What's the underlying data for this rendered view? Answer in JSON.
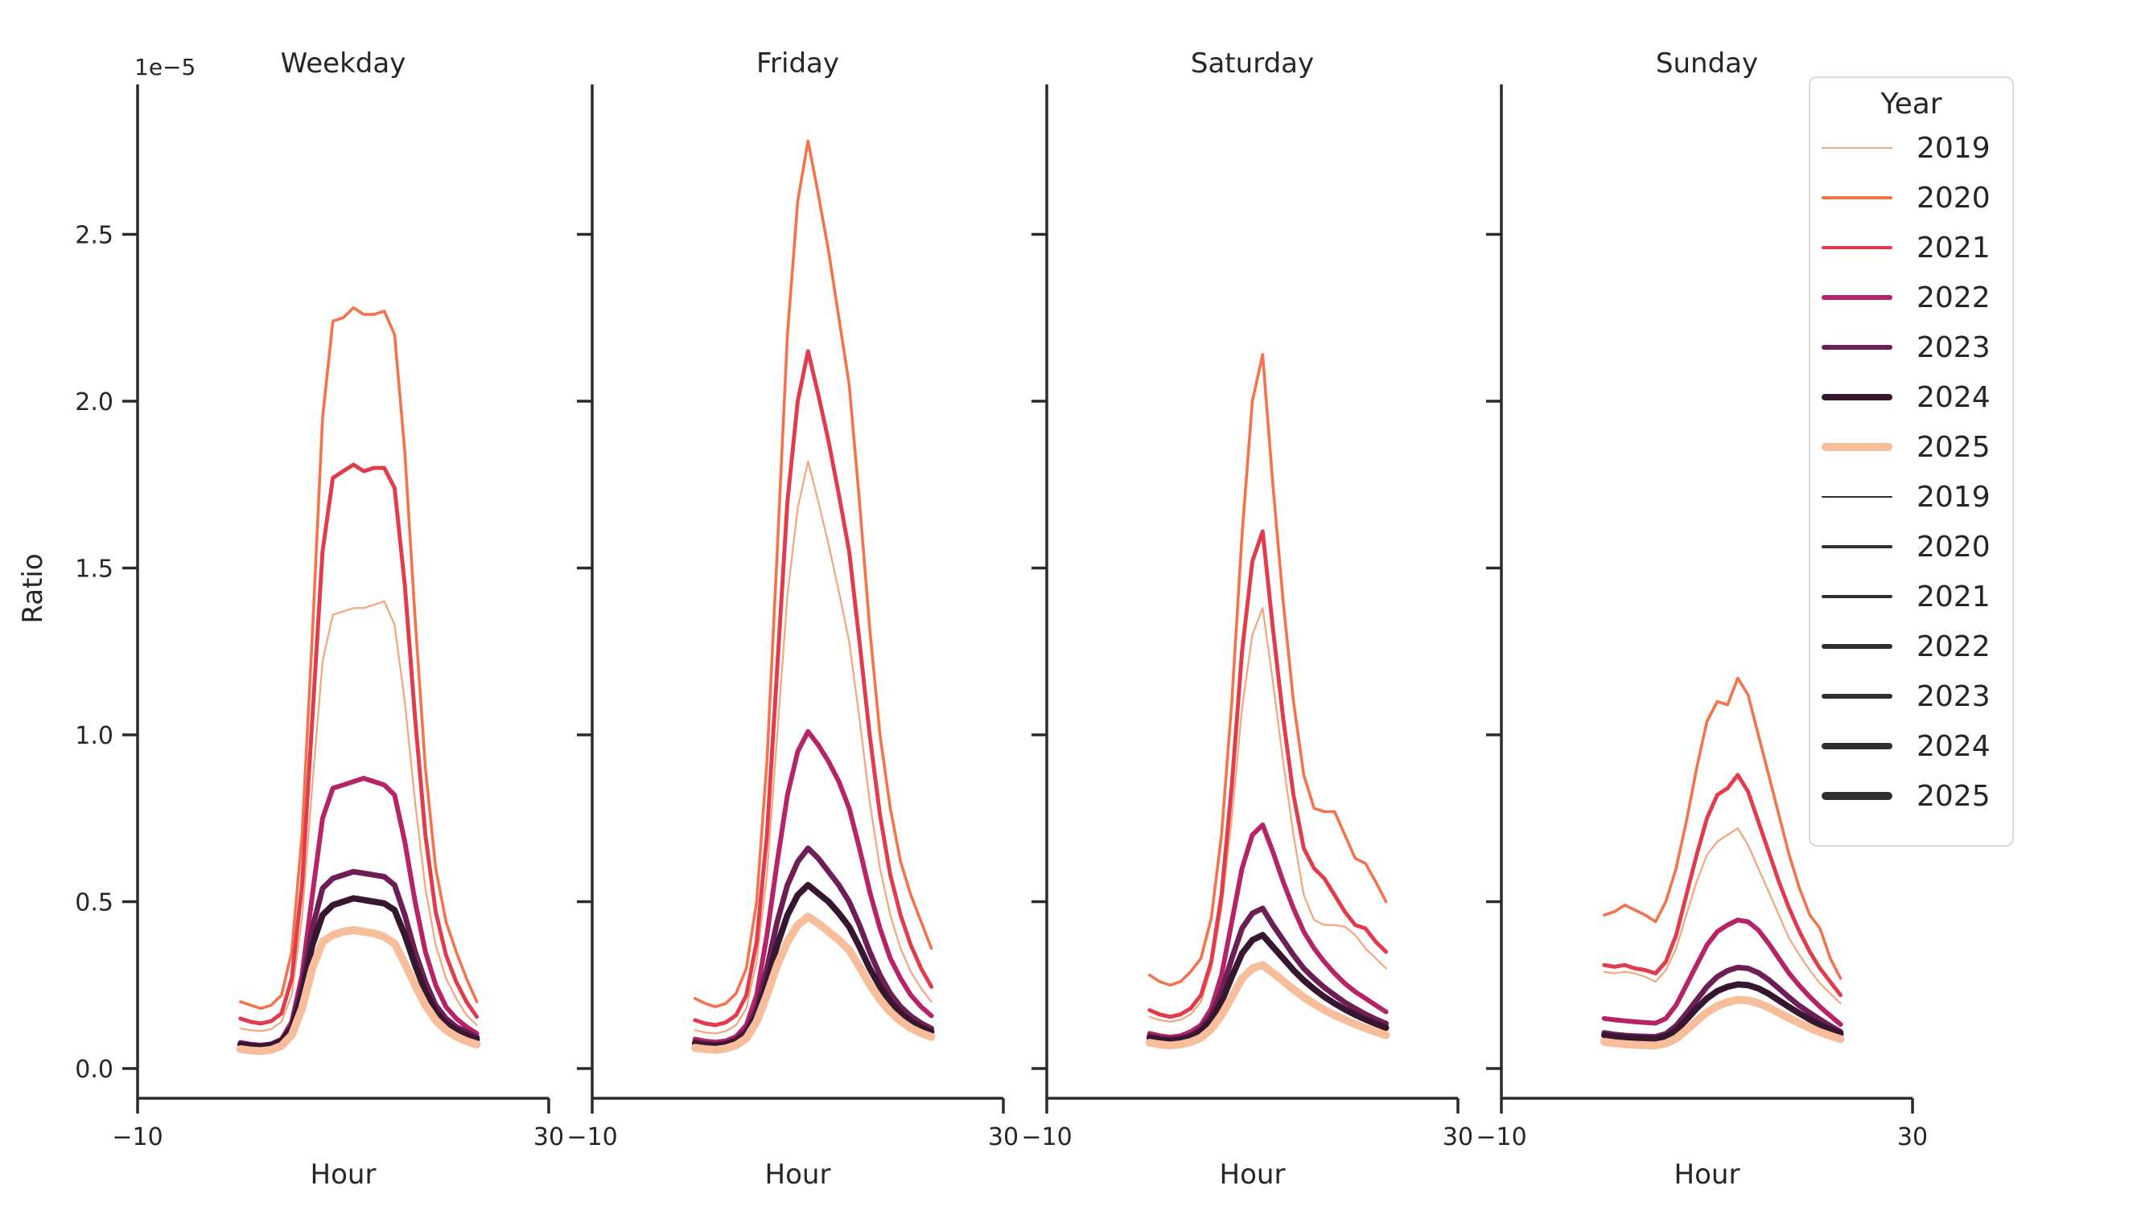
{
  "legend": {
    "title": "Year",
    "entries": [
      {
        "label": "2019",
        "color": "#F4A77E",
        "width": 1.5
      },
      {
        "label": "2020",
        "color": "#F3744C",
        "width": 2.4
      },
      {
        "label": "2021",
        "color": "#E13C4C",
        "width": 3.3
      },
      {
        "label": "2022",
        "color": "#B62367",
        "width": 4.0
      },
      {
        "label": "2023",
        "color": "#6E1E57",
        "width": 4.6
      },
      {
        "label": "2024",
        "color": "#371630",
        "width": 5.2
      },
      {
        "label": "2025",
        "color": "#F8BE9C",
        "width": 6.6
      },
      {
        "label": "2019",
        "color": "#2F2F2F",
        "width": 1.5
      },
      {
        "label": "2020",
        "color": "#2F2F2F",
        "width": 2.4
      },
      {
        "label": "2021",
        "color": "#2F2F2F",
        "width": 3.3
      },
      {
        "label": "2022",
        "color": "#2F2F2F",
        "width": 4.0
      },
      {
        "label": "2023",
        "color": "#2F2F2F",
        "width": 4.6
      },
      {
        "label": "2024",
        "color": "#2F2F2F",
        "width": 5.2
      },
      {
        "label": "2025",
        "color": "#2F2F2F",
        "width": 6.6
      }
    ]
  },
  "chart_data": {
    "type": "line",
    "xlabel": "Hour",
    "ylabel": "Ratio",
    "offset_text": "1e−5",
    "xlim": [
      -10,
      30
    ],
    "x_tick_values": [
      -10,
      30
    ],
    "x_tick_labels": [
      "−10",
      "30"
    ],
    "ylim": [
      -0.09,
      2.95
    ],
    "y_unit": "1e-5",
    "y_tick_values": [
      0.0,
      0.5,
      1.0,
      1.5,
      2.0,
      2.5
    ],
    "y_tick_labels": [
      "0.0",
      "0.5",
      "1.0",
      "1.5",
      "2.0",
      "2.5"
    ],
    "grid": false,
    "legend_position": "upper right, outside last panel",
    "hours": [
      0,
      1,
      2,
      3,
      4,
      5,
      6,
      7,
      8,
      9,
      10,
      11,
      12,
      13,
      14,
      15,
      16,
      17,
      18,
      19,
      20,
      21,
      22,
      23
    ],
    "years": [
      {
        "name": "2019",
        "color": "#F4A77E",
        "width": 1.5
      },
      {
        "name": "2020",
        "color": "#F3744C",
        "width": 2.4
      },
      {
        "name": "2021",
        "color": "#E13C4C",
        "width": 3.3
      },
      {
        "name": "2022",
        "color": "#B62367",
        "width": 4.0
      },
      {
        "name": "2023",
        "color": "#6E1E57",
        "width": 4.6
      },
      {
        "name": "2024",
        "color": "#371630",
        "width": 5.2
      },
      {
        "name": "2025",
        "color": "#F8BE9C",
        "width": 6.6
      }
    ],
    "panels": [
      {
        "title": "Weekday",
        "series": [
          {
            "name": "2019",
            "values": [
              0.12,
              0.115,
              0.112,
              0.118,
              0.14,
              0.22,
              0.45,
              0.85,
              1.22,
              1.36,
              1.37,
              1.38,
              1.38,
              1.39,
              1.4,
              1.33,
              1.1,
              0.8,
              0.54,
              0.37,
              0.27,
              0.21,
              0.16,
              0.13
            ]
          },
          {
            "name": "2020",
            "values": [
              0.2,
              0.19,
              0.18,
              0.19,
              0.22,
              0.35,
              0.7,
              1.3,
              1.95,
              2.24,
              2.25,
              2.28,
              2.26,
              2.26,
              2.27,
              2.2,
              1.85,
              1.35,
              0.9,
              0.6,
              0.44,
              0.35,
              0.27,
              0.2
            ]
          },
          {
            "name": "2021",
            "values": [
              0.15,
              0.14,
              0.135,
              0.142,
              0.165,
              0.27,
              0.55,
              1.05,
              1.55,
              1.77,
              1.79,
              1.81,
              1.79,
              1.8,
              1.8,
              1.74,
              1.45,
              1.05,
              0.7,
              0.47,
              0.34,
              0.26,
              0.2,
              0.155
            ]
          },
          {
            "name": "2022",
            "values": [
              0.078,
              0.073,
              0.07,
              0.074,
              0.088,
              0.14,
              0.28,
              0.52,
              0.75,
              0.84,
              0.85,
              0.86,
              0.87,
              0.86,
              0.85,
              0.82,
              0.68,
              0.5,
              0.35,
              0.25,
              0.185,
              0.15,
              0.125,
              0.105
            ]
          },
          {
            "name": "2023",
            "values": [
              0.075,
              0.07,
              0.068,
              0.072,
              0.085,
              0.13,
              0.25,
              0.42,
              0.54,
              0.57,
              0.58,
              0.59,
              0.585,
              0.58,
              0.575,
              0.55,
              0.46,
              0.35,
              0.26,
              0.19,
              0.15,
              0.125,
              0.11,
              0.095
            ]
          },
          {
            "name": "2024",
            "values": [
              0.072,
              0.068,
              0.066,
              0.07,
              0.082,
              0.12,
              0.22,
              0.37,
              0.46,
              0.49,
              0.5,
              0.51,
              0.505,
              0.5,
              0.495,
              0.475,
              0.4,
              0.31,
              0.23,
              0.17,
              0.135,
              0.115,
              0.1,
              0.088
            ]
          },
          {
            "name": "2025",
            "values": [
              0.058,
              0.054,
              0.052,
              0.056,
              0.068,
              0.1,
              0.18,
              0.3,
              0.38,
              0.4,
              0.41,
              0.415,
              0.41,
              0.405,
              0.395,
              0.375,
              0.315,
              0.25,
              0.19,
              0.145,
              0.115,
              0.096,
              0.082,
              0.072
            ]
          }
        ]
      },
      {
        "title": "Friday",
        "series": [
          {
            "name": "2019",
            "values": [
              0.115,
              0.108,
              0.105,
              0.112,
              0.13,
              0.18,
              0.32,
              0.58,
              1.0,
              1.42,
              1.68,
              1.82,
              1.7,
              1.57,
              1.43,
              1.28,
              1.05,
              0.8,
              0.6,
              0.46,
              0.36,
              0.29,
              0.24,
              0.2
            ]
          },
          {
            "name": "2020",
            "values": [
              0.21,
              0.195,
              0.185,
              0.195,
              0.225,
              0.3,
              0.5,
              0.92,
              1.55,
              2.2,
              2.6,
              2.78,
              2.62,
              2.45,
              2.25,
              2.05,
              1.7,
              1.32,
              1.0,
              0.78,
              0.62,
              0.52,
              0.44,
              0.36
            ]
          },
          {
            "name": "2021",
            "values": [
              0.145,
              0.135,
              0.13,
              0.138,
              0.16,
              0.22,
              0.38,
              0.7,
              1.2,
              1.7,
              2.0,
              2.15,
              2.02,
              1.88,
              1.72,
              1.55,
              1.28,
              1.0,
              0.76,
              0.58,
              0.46,
              0.37,
              0.3,
              0.245
            ]
          },
          {
            "name": "2022",
            "values": [
              0.088,
              0.082,
              0.079,
              0.083,
              0.096,
              0.13,
              0.22,
              0.4,
              0.62,
              0.82,
              0.95,
              1.01,
              0.97,
              0.92,
              0.86,
              0.78,
              0.66,
              0.53,
              0.42,
              0.33,
              0.27,
              0.22,
              0.185,
              0.158
            ]
          },
          {
            "name": "2023",
            "values": [
              0.08,
              0.075,
              0.072,
              0.076,
              0.088,
              0.115,
              0.18,
              0.3,
              0.44,
              0.55,
              0.62,
              0.66,
              0.63,
              0.59,
              0.55,
              0.5,
              0.43,
              0.35,
              0.28,
              0.225,
              0.185,
              0.157,
              0.136,
              0.12
            ]
          },
          {
            "name": "2024",
            "values": [
              0.075,
              0.07,
              0.068,
              0.072,
              0.082,
              0.105,
              0.16,
              0.26,
              0.37,
              0.46,
              0.52,
              0.55,
              0.525,
              0.5,
              0.465,
              0.425,
              0.365,
              0.3,
              0.245,
              0.2,
              0.166,
              0.141,
              0.123,
              0.11
            ]
          },
          {
            "name": "2025",
            "values": [
              0.062,
              0.058,
              0.056,
              0.06,
              0.07,
              0.09,
              0.14,
              0.22,
              0.31,
              0.38,
              0.43,
              0.455,
              0.435,
              0.41,
              0.385,
              0.355,
              0.305,
              0.252,
              0.207,
              0.17,
              0.142,
              0.121,
              0.106,
              0.095
            ]
          }
        ]
      },
      {
        "title": "Saturday",
        "series": [
          {
            "name": "2019",
            "values": [
              0.155,
              0.145,
              0.14,
              0.146,
              0.162,
              0.2,
              0.3,
              0.48,
              0.75,
              1.08,
              1.3,
              1.38,
              1.16,
              0.92,
              0.7,
              0.52,
              0.445,
              0.43,
              0.43,
              0.425,
              0.4,
              0.36,
              0.33,
              0.3
            ]
          },
          {
            "name": "2020",
            "values": [
              0.28,
              0.26,
              0.25,
              0.26,
              0.29,
              0.33,
              0.45,
              0.7,
              1.1,
              1.6,
              2.0,
              2.14,
              1.75,
              1.4,
              1.1,
              0.88,
              0.78,
              0.77,
              0.77,
              0.7,
              0.63,
              0.615,
              0.56,
              0.5
            ]
          },
          {
            "name": "2021",
            "values": [
              0.175,
              0.162,
              0.155,
              0.162,
              0.18,
              0.22,
              0.32,
              0.52,
              0.85,
              1.25,
              1.52,
              1.61,
              1.32,
              1.05,
              0.82,
              0.66,
              0.6,
              0.57,
              0.52,
              0.47,
              0.43,
              0.42,
              0.38,
              0.35
            ]
          },
          {
            "name": "2022",
            "values": [
              0.105,
              0.098,
              0.094,
              0.098,
              0.11,
              0.13,
              0.18,
              0.28,
              0.44,
              0.6,
              0.7,
              0.73,
              0.65,
              0.56,
              0.48,
              0.41,
              0.36,
              0.32,
              0.285,
              0.255,
              0.23,
              0.21,
              0.19,
              0.17
            ]
          },
          {
            "name": "2023",
            "values": [
              0.097,
              0.091,
              0.088,
              0.091,
              0.1,
              0.12,
              0.16,
              0.23,
              0.33,
              0.42,
              0.465,
              0.48,
              0.43,
              0.385,
              0.34,
              0.3,
              0.27,
              0.243,
              0.22,
              0.198,
              0.18,
              0.163,
              0.148,
              0.135
            ]
          },
          {
            "name": "2024",
            "values": [
              0.092,
              0.086,
              0.083,
              0.086,
              0.095,
              0.112,
              0.145,
              0.2,
              0.275,
              0.345,
              0.385,
              0.4,
              0.365,
              0.33,
              0.295,
              0.264,
              0.238,
              0.215,
              0.195,
              0.177,
              0.161,
              0.147,
              0.134,
              0.122
            ]
          },
          {
            "name": "2025",
            "values": [
              0.077,
              0.072,
              0.069,
              0.072,
              0.079,
              0.092,
              0.118,
              0.16,
              0.215,
              0.27,
              0.3,
              0.31,
              0.287,
              0.262,
              0.237,
              0.214,
              0.194,
              0.176,
              0.16,
              0.146,
              0.133,
              0.121,
              0.11,
              0.1
            ]
          }
        ]
      },
      {
        "title": "Sunday",
        "series": [
          {
            "name": "2019",
            "values": [
              0.29,
              0.285,
              0.29,
              0.285,
              0.275,
              0.26,
              0.295,
              0.36,
              0.46,
              0.56,
              0.64,
              0.68,
              0.7,
              0.72,
              0.67,
              0.6,
              0.53,
              0.46,
              0.39,
              0.34,
              0.295,
              0.255,
              0.225,
              0.195
            ]
          },
          {
            "name": "2020",
            "values": [
              0.46,
              0.47,
              0.49,
              0.475,
              0.46,
              0.44,
              0.5,
              0.6,
              0.74,
              0.9,
              1.04,
              1.1,
              1.09,
              1.17,
              1.12,
              1.0,
              0.88,
              0.76,
              0.64,
              0.54,
              0.46,
              0.42,
              0.33,
              0.27
            ]
          },
          {
            "name": "2021",
            "values": [
              0.31,
              0.305,
              0.31,
              0.3,
              0.295,
              0.285,
              0.32,
              0.4,
              0.52,
              0.64,
              0.75,
              0.82,
              0.84,
              0.88,
              0.83,
              0.74,
              0.65,
              0.56,
              0.48,
              0.41,
              0.35,
              0.3,
              0.26,
              0.22
            ]
          },
          {
            "name": "2022",
            "values": [
              0.15,
              0.146,
              0.143,
              0.14,
              0.138,
              0.136,
              0.15,
              0.19,
              0.25,
              0.31,
              0.37,
              0.41,
              0.43,
              0.445,
              0.44,
              0.415,
              0.375,
              0.33,
              0.285,
              0.248,
              0.215,
              0.185,
              0.158,
              0.132
            ]
          },
          {
            "name": "2023",
            "values": [
              0.107,
              0.102,
              0.099,
              0.097,
              0.096,
              0.095,
              0.104,
              0.128,
              0.165,
              0.205,
              0.245,
              0.275,
              0.293,
              0.303,
              0.3,
              0.287,
              0.266,
              0.24,
              0.213,
              0.188,
              0.167,
              0.147,
              0.128,
              0.11
            ]
          },
          {
            "name": "2024",
            "values": [
              0.1,
              0.096,
              0.093,
              0.091,
              0.09,
              0.089,
              0.096,
              0.114,
              0.146,
              0.18,
              0.21,
              0.232,
              0.245,
              0.252,
              0.25,
              0.24,
              0.224,
              0.204,
              0.184,
              0.165,
              0.147,
              0.131,
              0.117,
              0.104
            ]
          },
          {
            "name": "2025",
            "values": [
              0.08,
              0.076,
              0.073,
              0.071,
              0.07,
              0.069,
              0.075,
              0.09,
              0.115,
              0.143,
              0.168,
              0.187,
              0.199,
              0.206,
              0.204,
              0.196,
              0.183,
              0.167,
              0.151,
              0.136,
              0.122,
              0.109,
              0.098,
              0.088
            ]
          }
        ]
      }
    ]
  }
}
